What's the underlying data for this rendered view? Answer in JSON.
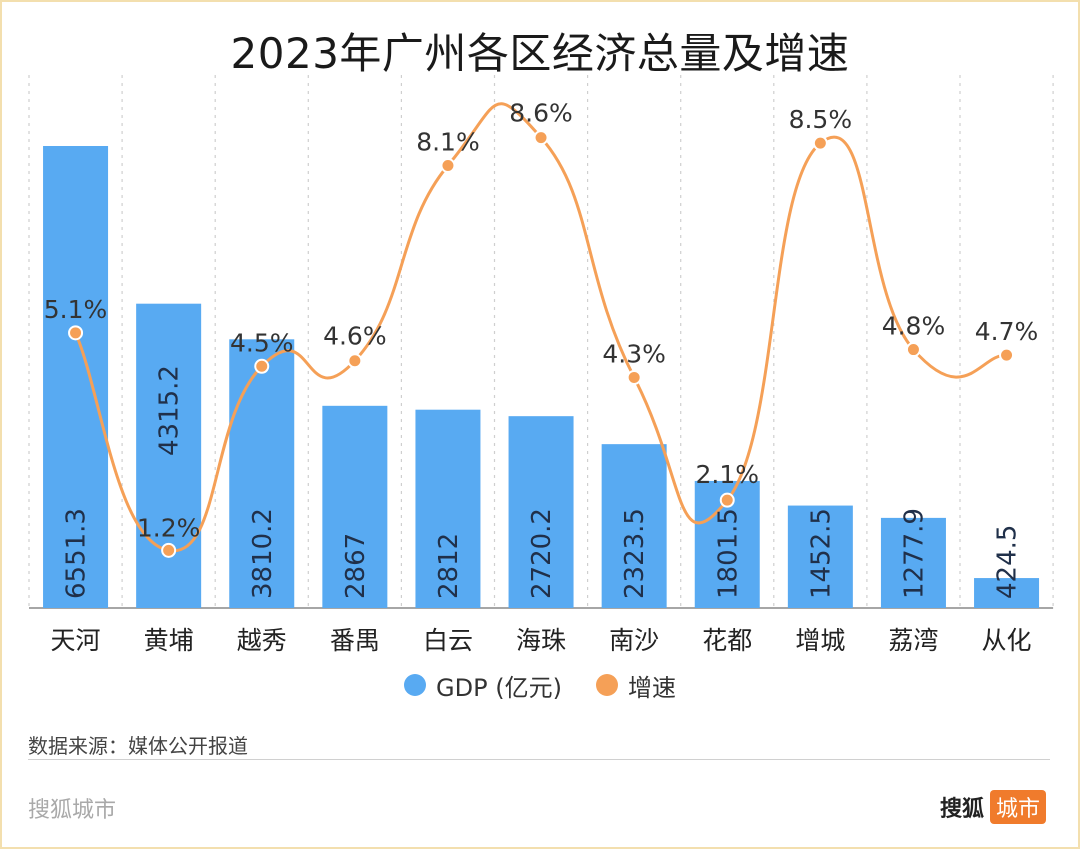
{
  "title": "2023年广州各区经济总量及增速",
  "colors": {
    "bar": "#58aaf2",
    "line": "#f5a057",
    "grid": "#cfcfcf"
  },
  "legend": {
    "bar_label": "GDP (亿元)",
    "line_label": "增速"
  },
  "source": "数据来源：媒体公开报道",
  "footer": {
    "left": "搜狐城市",
    "right_text": "搜狐",
    "right_badge": "城市"
  },
  "chart_data": {
    "type": "bar",
    "title": "2023年广州各区经济总量及增速",
    "categories": [
      "天河",
      "黄埔",
      "越秀",
      "番禺",
      "白云",
      "海珠",
      "南沙",
      "花都",
      "增城",
      "荔湾",
      "从化"
    ],
    "series": [
      {
        "name": "GDP (亿元)",
        "type": "bar",
        "values": [
          6551.3,
          4315.2,
          3810.2,
          2867,
          2812,
          2720.2,
          2323.5,
          1801.5,
          1452.5,
          1277.9,
          424.5
        ],
        "labels": [
          "6551.3",
          "4315.2",
          "3810.2",
          "2867",
          "2812",
          "2720.2",
          "2323.5",
          "1801.5",
          "1452.5",
          "1277.9",
          "424.5"
        ]
      },
      {
        "name": "增速",
        "type": "line",
        "values": [
          5.1,
          1.2,
          4.5,
          4.6,
          8.1,
          8.6,
          4.3,
          2.1,
          8.5,
          4.8,
          4.7
        ],
        "labels": [
          "5.1%",
          "1.2%",
          "4.5%",
          "4.6%",
          "8.1%",
          "8.6%",
          "4.3%",
          "2.1%",
          "8.5%",
          "4.8%",
          "4.7%"
        ]
      }
    ],
    "legend": "bottom-center",
    "grid": "vertical-dashed"
  }
}
